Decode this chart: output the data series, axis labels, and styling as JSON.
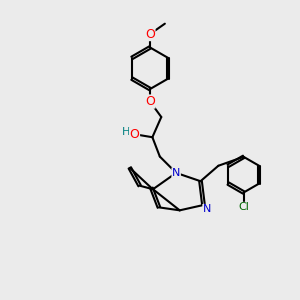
{
  "bg_color": "#ebebeb",
  "bond_color": "#000000",
  "bond_width": 1.5,
  "atom_colors": {
    "O": "#ff0000",
    "N": "#0000cc",
    "Cl": "#006600",
    "H": "#008080",
    "C": "#000000"
  },
  "font_size_atom": 9,
  "font_size_small": 8
}
